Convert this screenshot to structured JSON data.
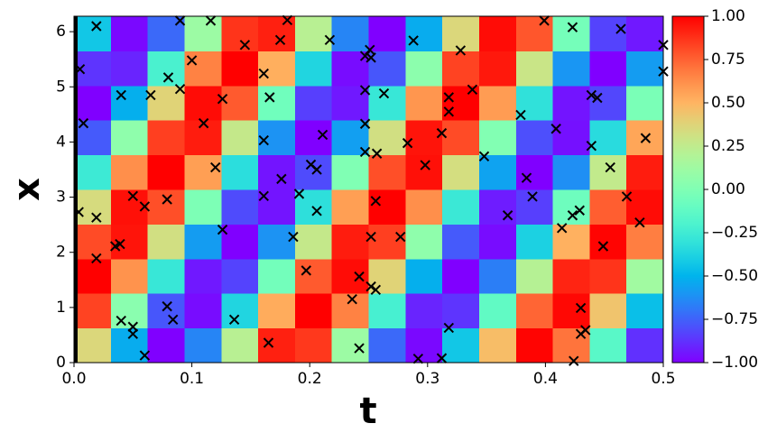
{
  "chart_data": {
    "type": "heatmap",
    "xlabel": "t",
    "ylabel": "x",
    "colormap": "rainbow",
    "xlim": [
      0,
      0.5
    ],
    "ylim": [
      0,
      6.28
    ],
    "xticks": [
      {
        "value": 0,
        "label": "0.0"
      },
      0.1,
      0.2,
      0.3,
      0.4,
      0.5
    ],
    "yticks": [
      0,
      1,
      2,
      3,
      4,
      5,
      6
    ],
    "clim": [
      -1,
      1
    ],
    "cticks": [
      {
        "value": -1,
        "label": "−1.00"
      },
      {
        "value": -0.75,
        "label": "−0.75"
      },
      {
        "value": -0.5,
        "label": "−0.50"
      },
      {
        "value": -0.25,
        "label": "−0.25"
      },
      {
        "value": 0,
        "label": "0.00"
      },
      {
        "value": 0.25,
        "label": "0.25"
      },
      {
        "value": 0.5,
        "label": "0.50"
      },
      {
        "value": 0.75,
        "label": "0.75"
      },
      {
        "value": 1,
        "label": "1.00"
      }
    ],
    "z": [
      [
        0.36,
        -0.53,
        -1.0,
        -0.65,
        0.22,
        0.92,
        0.86,
        0.11,
        -0.73,
        -0.98,
        -0.43,
        0.47,
        0.99,
        0.7,
        -0.15,
        -0.88
      ],
      [
        0.83,
        0.04,
        -0.78,
        -0.97,
        -0.37,
        0.53,
        1.0,
        0.66,
        -0.22,
        -0.91,
        -0.87,
        -0.12,
        0.74,
        0.98,
        0.44,
        -0.46
      ],
      [
        1.0,
        0.61,
        -0.28,
        -0.94,
        -0.83,
        -0.05,
        0.77,
        0.97,
        0.38,
        -0.52,
        -1.0,
        -0.67,
        0.21,
        0.91,
        0.87,
        0.13
      ],
      [
        0.81,
        0.95,
        0.32,
        -0.58,
        -1.0,
        -0.61,
        0.27,
        0.93,
        0.84,
        0.06,
        -0.77,
        -0.97,
        -0.39,
        0.51,
        0.99,
        0.67
      ],
      [
        0.34,
        0.96,
        0.8,
        -0.01,
        -0.81,
        -0.95,
        -0.32,
        0.57,
        1.0,
        0.62,
        -0.27,
        -0.93,
        -0.84,
        -0.07,
        0.76,
        0.97
      ],
      [
        -0.26,
        0.62,
        1.0,
        0.57,
        -0.33,
        -0.95,
        -0.81,
        0.0,
        0.8,
        0.96,
        0.33,
        -0.56,
        -1.0,
        -0.62,
        0.26,
        0.93
      ],
      [
        -0.77,
        0.06,
        0.84,
        0.93,
        0.27,
        -0.61,
        -1.0,
        -0.57,
        0.32,
        0.95,
        0.81,
        0.01,
        -0.8,
        -0.96,
        -0.34,
        0.55
      ],
      [
        -1.0,
        -0.52,
        0.38,
        0.97,
        0.77,
        -0.06,
        -0.84,
        -0.94,
        -0.28,
        0.6,
        1.0,
        0.58,
        -0.31,
        -0.95,
        -0.82,
        -0.02
      ],
      [
        -0.87,
        -0.91,
        -0.21,
        0.66,
        1.0,
        0.52,
        -0.37,
        -0.97,
        -0.78,
        0.05,
        0.83,
        0.94,
        0.29,
        -0.6,
        -1.0,
        -0.58
      ],
      [
        -0.43,
        -0.98,
        -0.73,
        0.11,
        0.87,
        0.92,
        0.22,
        -0.65,
        -1.0,
        -0.53,
        0.36,
        0.97,
        0.78,
        -0.04,
        -0.83,
        -0.94
      ]
    ],
    "points": {
      "color": "#000000",
      "x": [
        0.005,
        0.008,
        0.004,
        0.019,
        0.019,
        0.019,
        0.035,
        0.039,
        0.04,
        0.04,
        0.05,
        0.05,
        0.05,
        0.06,
        0.06,
        0.065,
        0.079,
        0.08,
        0.079,
        0.084,
        0.09,
        0.09,
        0.1,
        0.11,
        0.116,
        0.12,
        0.126,
        0.126,
        0.136,
        0.145,
        0.161,
        0.161,
        0.161,
        0.165,
        0.166,
        0.175,
        0.176,
        0.181,
        0.186,
        0.191,
        0.197,
        0.201,
        0.206,
        0.206,
        0.211,
        0.217,
        0.236,
        0.242,
        0.242,
        0.247,
        0.247,
        0.247,
        0.247,
        0.251,
        0.252,
        0.252,
        0.252,
        0.256,
        0.256,
        0.257,
        0.263,
        0.277,
        0.283,
        0.288,
        0.292,
        0.298,
        0.312,
        0.312,
        0.318,
        0.318,
        0.318,
        0.328,
        0.338,
        0.348,
        0.368,
        0.379,
        0.384,
        0.389,
        0.399,
        0.409,
        0.414,
        0.423,
        0.423,
        0.424,
        0.429,
        0.43,
        0.43,
        0.434,
        0.439,
        0.439,
        0.444,
        0.449,
        0.455,
        0.464,
        0.469,
        0.48,
        0.485,
        0.5,
        0.5
      ],
      "y": [
        5.32,
        4.34,
        2.73,
        6.1,
        2.63,
        1.89,
        2.11,
        2.15,
        4.85,
        0.76,
        3.02,
        0.65,
        0.52,
        2.83,
        0.13,
        4.85,
        2.96,
        5.17,
        1.02,
        0.78,
        4.96,
        6.2,
        5.48,
        4.34,
        6.2,
        3.54,
        4.78,
        2.41,
        0.78,
        5.76,
        5.24,
        4.03,
        3.02,
        0.36,
        4.81,
        5.85,
        3.33,
        6.21,
        2.28,
        3.06,
        1.67,
        3.59,
        3.5,
        2.75,
        4.13,
        5.85,
        1.15,
        1.56,
        0.26,
        5.56,
        4.94,
        4.33,
        3.82,
        5.67,
        5.53,
        2.28,
        1.38,
        1.32,
        2.93,
        3.79,
        4.88,
        2.28,
        3.98,
        5.84,
        0.07,
        3.58,
        0.08,
        4.16,
        0.63,
        4.81,
        4.55,
        5.66,
        4.95,
        3.74,
        2.67,
        4.49,
        3.35,
        3.01,
        6.2,
        4.24,
        2.44,
        6.08,
        2.67,
        0.03,
        2.76,
        0.99,
        0.52,
        0.59,
        4.85,
        3.93,
        4.8,
        2.11,
        3.54,
        6.05,
        3.01,
        2.54,
        4.07,
        5.76,
        5.28
      ]
    }
  }
}
